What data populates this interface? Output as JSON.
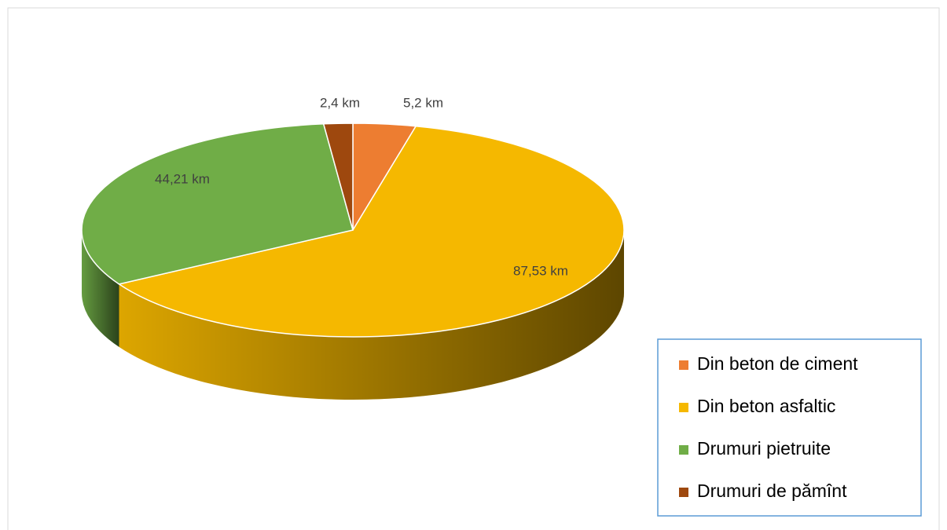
{
  "chart_data": {
    "type": "pie",
    "categories": [
      "Din beton de ciment",
      "Din beton asfaltic",
      "Drumuri pietruite",
      "Drumuri de pămînt"
    ],
    "values": [
      5.2,
      87.53,
      44.21,
      2.4
    ],
    "value_labels": [
      "5,2 km",
      "87,53 km",
      "44,21 km",
      "2,4 km"
    ],
    "colors": [
      "#ed7d31",
      "#f5b800",
      "#70ad47",
      "#9e480e"
    ],
    "legend": "bottom-right"
  }
}
